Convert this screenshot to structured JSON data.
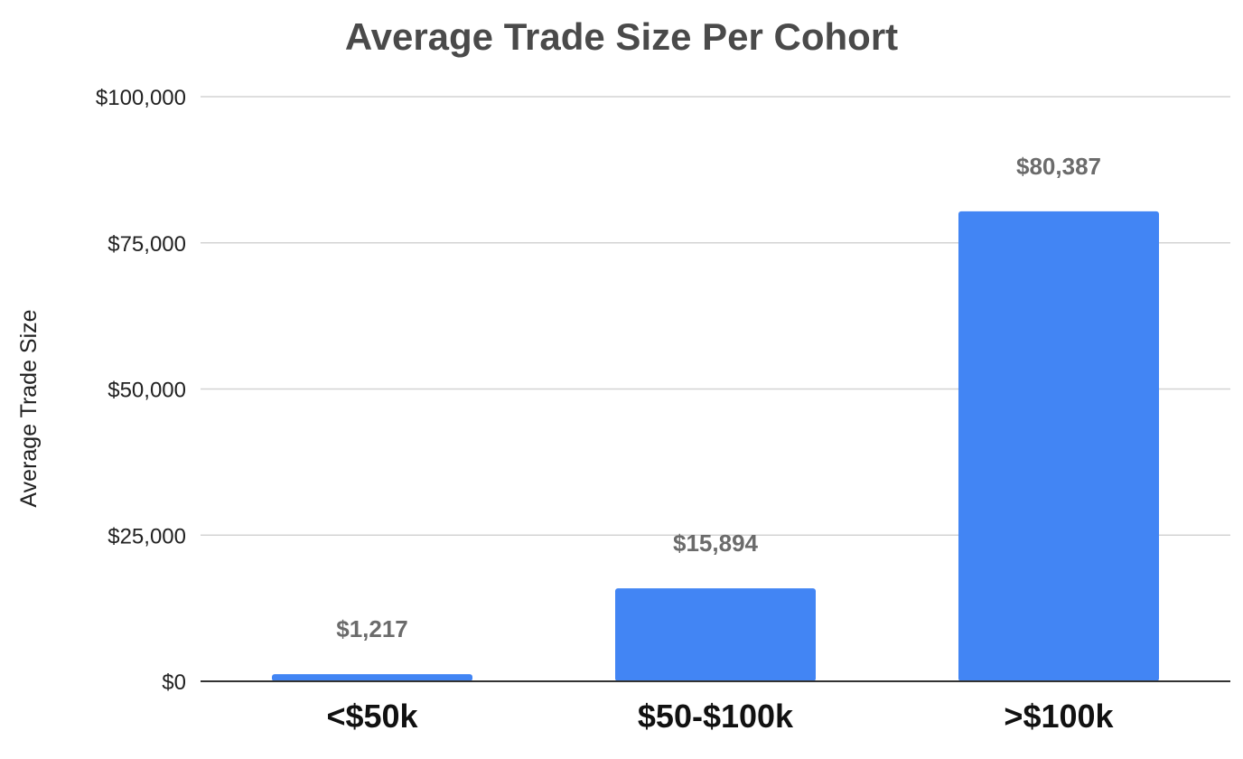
{
  "chart_data": {
    "type": "bar",
    "title": "Average Trade Size Per Cohort",
    "xlabel": "",
    "ylabel": "Average Trade Size",
    "categories": [
      "<$50k",
      "$50-$100k",
      ">$100k"
    ],
    "values": [
      1217,
      15894,
      80387
    ],
    "data_labels": [
      "$1,217",
      "$15,894",
      "$80,387"
    ],
    "ylim": [
      0,
      100000
    ],
    "y_ticks": [
      0,
      25000,
      50000,
      75000,
      100000
    ],
    "y_tick_labels": [
      "$0",
      "$25,000",
      "$50,000",
      "$75,000",
      "$100,000"
    ],
    "grid": true,
    "legend": "none",
    "colors": {
      "bar": "#4285f4",
      "title": "#4a4a4a",
      "data_label": "#6b6b6b",
      "gridline": "#d3d3d3",
      "baseline": "#333333"
    }
  }
}
